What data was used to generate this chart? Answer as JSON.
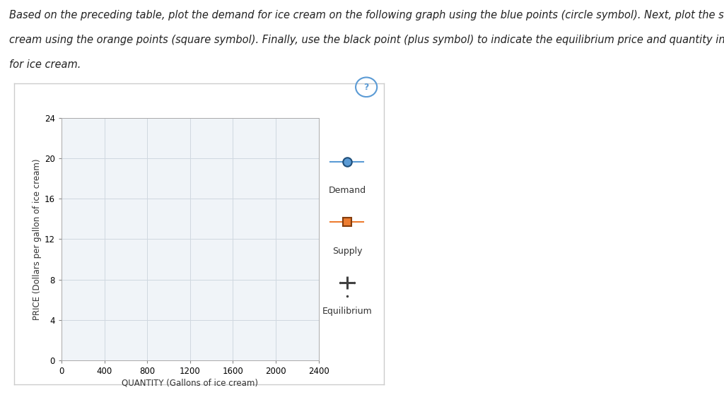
{
  "xlabel": "QUANTITY (Gallons of ice cream)",
  "ylabel": "PRICE (Dollars per gallon of ice cream)",
  "xlim": [
    0,
    2400
  ],
  "ylim": [
    0,
    24
  ],
  "xticks": [
    0,
    400,
    800,
    1200,
    1600,
    2000,
    2400
  ],
  "yticks": [
    0,
    4,
    8,
    12,
    16,
    20,
    24
  ],
  "demand_color": "#5b9bd5",
  "demand_marker_face": "#5b9bd5",
  "demand_marker_edge": "#1f4e79",
  "supply_color": "#ed7d31",
  "supply_marker_face": "#ed7d31",
  "supply_marker_edge": "#843c0c",
  "equilibrium_color": "#404040",
  "plot_bg_color": "#f0f4f8",
  "grid_color": "#d0d8e0",
  "outer_box_bg": "#ffffff",
  "outer_box_edge": "#cccccc",
  "question_mark_color": "#5b9bd5",
  "fig_bg_color": "#ffffff",
  "title_line1": "Based on the preceding table, plot the demand for ice cream on the following graph using the blue points (circle symbol). Next, plot the supply of ice",
  "title_line2": "cream using the orange points (square symbol). Finally, use the black point (plus symbol) to indicate the equilibrium price and quantity in the market",
  "title_line3": "for ice cream.",
  "title_fontsize": 10.5,
  "axis_label_fontsize": 8.5,
  "tick_fontsize": 8.5,
  "legend_fontsize": 9
}
